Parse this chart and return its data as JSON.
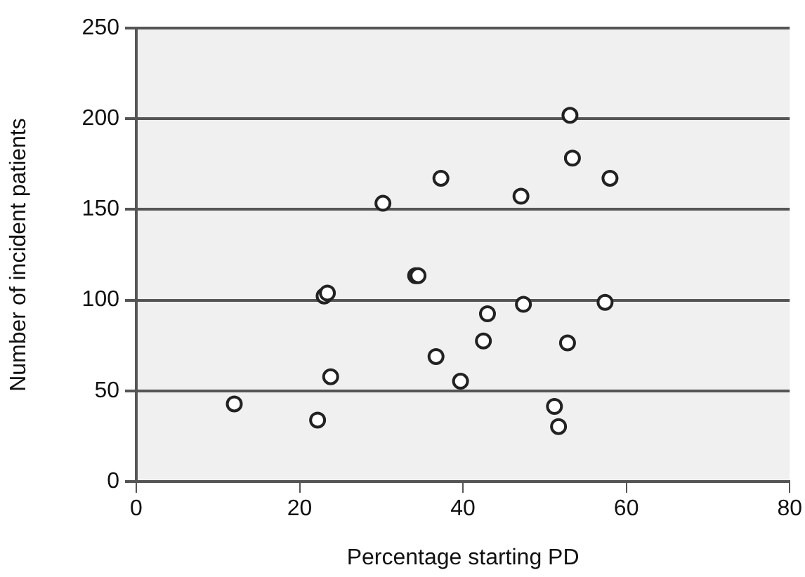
{
  "chart_data": {
    "type": "scatter",
    "xlabel": "Percentage starting PD",
    "ylabel": "Number of incident patients",
    "x": [
      12.0,
      22.2,
      23.8,
      23.0,
      23.4,
      30.2,
      34.2,
      34.5,
      36.7,
      37.3,
      39.7,
      53.1,
      53.4,
      58.0,
      47.1,
      47.4,
      57.4,
      43.0,
      42.5,
      52.8,
      51.2,
      51.7
    ],
    "series": [
      {
        "color": "#222222",
        "values": [
          42.8,
          33.9,
          57.8,
          102.3,
          103.9,
          153.4,
          113.5,
          113.5,
          68.9,
          167.2,
          55.3,
          201.9,
          178.3,
          167.2,
          157.3,
          97.7,
          98.8,
          92.5,
          77.5,
          76.4,
          41.4,
          30.3
        ]
      }
    ],
    "xlim": [
      0,
      80
    ],
    "xticks": [
      0,
      20,
      40,
      60,
      80
    ],
    "ylim": [
      0,
      250
    ],
    "yticks": [
      0,
      50,
      100,
      150,
      200,
      250
    ],
    "grid": "y",
    "legend": false,
    "marker": "circle"
  }
}
